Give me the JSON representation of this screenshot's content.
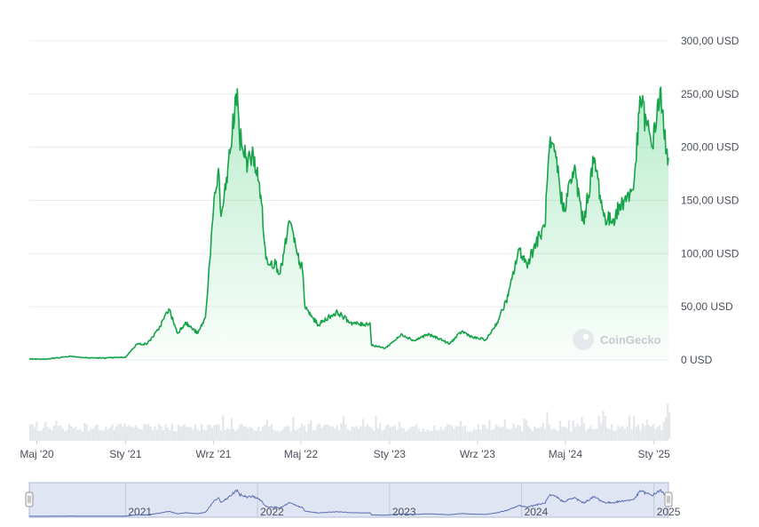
{
  "watermark": "CoinGecko",
  "colors": {
    "line": "#16a34a",
    "fill_top": "#22c55e",
    "grid": "#ececec",
    "volume": "#e3e6ea",
    "navigator_fill": "#d5dcef",
    "navigator_line": "#5b6fb0"
  },
  "chart_data": {
    "type": "area",
    "y_unit": "USD",
    "ylim": [
      0,
      300
    ],
    "y_ticks": [
      {
        "value": 0,
        "label": "0 USD"
      },
      {
        "value": 50,
        "label": "50,00 USD"
      },
      {
        "value": 100,
        "label": "100,00 USD"
      },
      {
        "value": 150,
        "label": "150,00 USD"
      },
      {
        "value": 200,
        "label": "200,00 USD"
      },
      {
        "value": 250,
        "label": "250,00 USD"
      },
      {
        "value": 300,
        "label": "300,00 USD"
      }
    ],
    "x_range": [
      "2020-04-10",
      "2025-02-10"
    ],
    "x_ticks": [
      {
        "date": "2020-05-01",
        "label": "Maj '20"
      },
      {
        "date": "2021-01-01",
        "label": "Sty '21"
      },
      {
        "date": "2021-09-01",
        "label": "Wrz '21"
      },
      {
        "date": "2022-05-01",
        "label": "Maj '22"
      },
      {
        "date": "2023-01-01",
        "label": "Sty '23"
      },
      {
        "date": "2023-09-01",
        "label": "Wrz '23"
      },
      {
        "date": "2024-05-01",
        "label": "Maj '24"
      },
      {
        "date": "2025-01-01",
        "label": "Sty '25"
      }
    ],
    "grid": true,
    "legend": "none",
    "series": [
      {
        "points": [
          [
            "2020-04-10",
            0.8
          ],
          [
            "2020-06-01",
            1.0
          ],
          [
            "2020-08-01",
            3.5
          ],
          [
            "2020-09-15",
            2.0
          ],
          [
            "2020-11-01",
            1.8
          ],
          [
            "2021-01-01",
            2.5
          ],
          [
            "2021-02-01",
            15
          ],
          [
            "2021-03-01",
            15
          ],
          [
            "2021-04-01",
            28
          ],
          [
            "2021-05-01",
            48
          ],
          [
            "2021-05-25",
            25
          ],
          [
            "2021-06-15",
            35
          ],
          [
            "2021-07-20",
            25
          ],
          [
            "2021-08-10",
            40
          ],
          [
            "2021-09-01",
            140
          ],
          [
            "2021-09-15",
            180
          ],
          [
            "2021-09-22",
            135
          ],
          [
            "2021-10-05",
            160
          ],
          [
            "2021-11-06",
            255
          ],
          [
            "2021-11-12",
            210
          ],
          [
            "2021-12-05",
            185
          ],
          [
            "2021-12-20",
            195
          ],
          [
            "2022-01-10",
            155
          ],
          [
            "2022-01-24",
            95
          ],
          [
            "2022-02-20",
            90
          ],
          [
            "2022-03-05",
            82
          ],
          [
            "2022-03-31",
            130
          ],
          [
            "2022-04-20",
            100
          ],
          [
            "2022-05-05",
            85
          ],
          [
            "2022-05-12",
            50
          ],
          [
            "2022-06-01",
            40
          ],
          [
            "2022-06-18",
            33
          ],
          [
            "2022-07-15",
            40
          ],
          [
            "2022-08-10",
            45
          ],
          [
            "2022-09-15",
            35
          ],
          [
            "2022-10-20",
            33
          ],
          [
            "2022-11-08",
            35
          ],
          [
            "2022-11-12",
            14
          ],
          [
            "2022-12-20",
            11
          ],
          [
            "2023-01-10",
            17
          ],
          [
            "2023-02-05",
            24
          ],
          [
            "2023-03-10",
            18
          ],
          [
            "2023-04-15",
            24
          ],
          [
            "2023-05-20",
            20
          ],
          [
            "2023-06-15",
            15
          ],
          [
            "2023-07-20",
            27
          ],
          [
            "2023-08-20",
            21
          ],
          [
            "2023-09-25",
            19
          ],
          [
            "2023-10-25",
            35
          ],
          [
            "2023-11-25",
            60
          ],
          [
            "2023-12-25",
            105
          ],
          [
            "2024-01-15",
            90
          ],
          [
            "2024-02-10",
            110
          ],
          [
            "2024-03-05",
            125
          ],
          [
            "2024-03-18",
            200
          ],
          [
            "2024-04-05",
            190
          ],
          [
            "2024-04-25",
            140
          ],
          [
            "2024-05-25",
            180
          ],
          [
            "2024-06-20",
            130
          ],
          [
            "2024-07-20",
            190
          ],
          [
            "2024-08-15",
            135
          ],
          [
            "2024-09-05",
            130
          ],
          [
            "2024-10-10",
            150
          ],
          [
            "2024-11-05",
            160
          ],
          [
            "2024-11-25",
            245
          ],
          [
            "2024-12-12",
            220
          ],
          [
            "2024-12-28",
            200
          ],
          [
            "2025-01-18",
            255
          ],
          [
            "2025-01-28",
            215
          ],
          [
            "2025-02-10",
            190
          ]
        ]
      }
    ],
    "navigator": {
      "type": "line",
      "ticks": [
        {
          "date": "2021-01-01",
          "label": "2021"
        },
        {
          "date": "2022-01-01",
          "label": "2022"
        },
        {
          "date": "2023-01-01",
          "label": "2023"
        },
        {
          "date": "2024-01-01",
          "label": "2024"
        },
        {
          "date": "2025-01-01",
          "label": "2025"
        }
      ]
    },
    "volume": {
      "type": "bar",
      "relative_levels": [
        [
          "2020-04-10",
          0.01
        ],
        [
          "2020-10-01",
          0.02
        ],
        [
          "2021-02-01",
          0.08
        ],
        [
          "2021-05-01",
          0.12
        ],
        [
          "2021-08-20",
          0.3
        ],
        [
          "2021-10-01",
          0.18
        ],
        [
          "2021-11-05",
          0.25
        ],
        [
          "2022-01-01",
          0.15
        ],
        [
          "2022-04-01",
          0.12
        ],
        [
          "2022-06-01",
          0.1
        ],
        [
          "2022-11-10",
          0.15
        ],
        [
          "2023-01-01",
          0.05
        ],
        [
          "2023-06-01",
          0.04
        ],
        [
          "2023-09-01",
          0.03
        ],
        [
          "2023-11-01",
          0.1
        ],
        [
          "2023-12-25",
          0.22
        ],
        [
          "2024-03-15",
          0.3
        ],
        [
          "2024-04-20",
          0.18
        ],
        [
          "2024-07-01",
          0.15
        ],
        [
          "2024-08-05",
          0.35
        ],
        [
          "2024-09-15",
          0.1
        ],
        [
          "2024-11-10",
          0.28
        ],
        [
          "2024-12-10",
          0.4
        ],
        [
          "2025-01-20",
          0.35
        ],
        [
          "2025-02-05",
          1.0
        ],
        [
          "2025-02-10",
          0.6
        ]
      ]
    }
  }
}
